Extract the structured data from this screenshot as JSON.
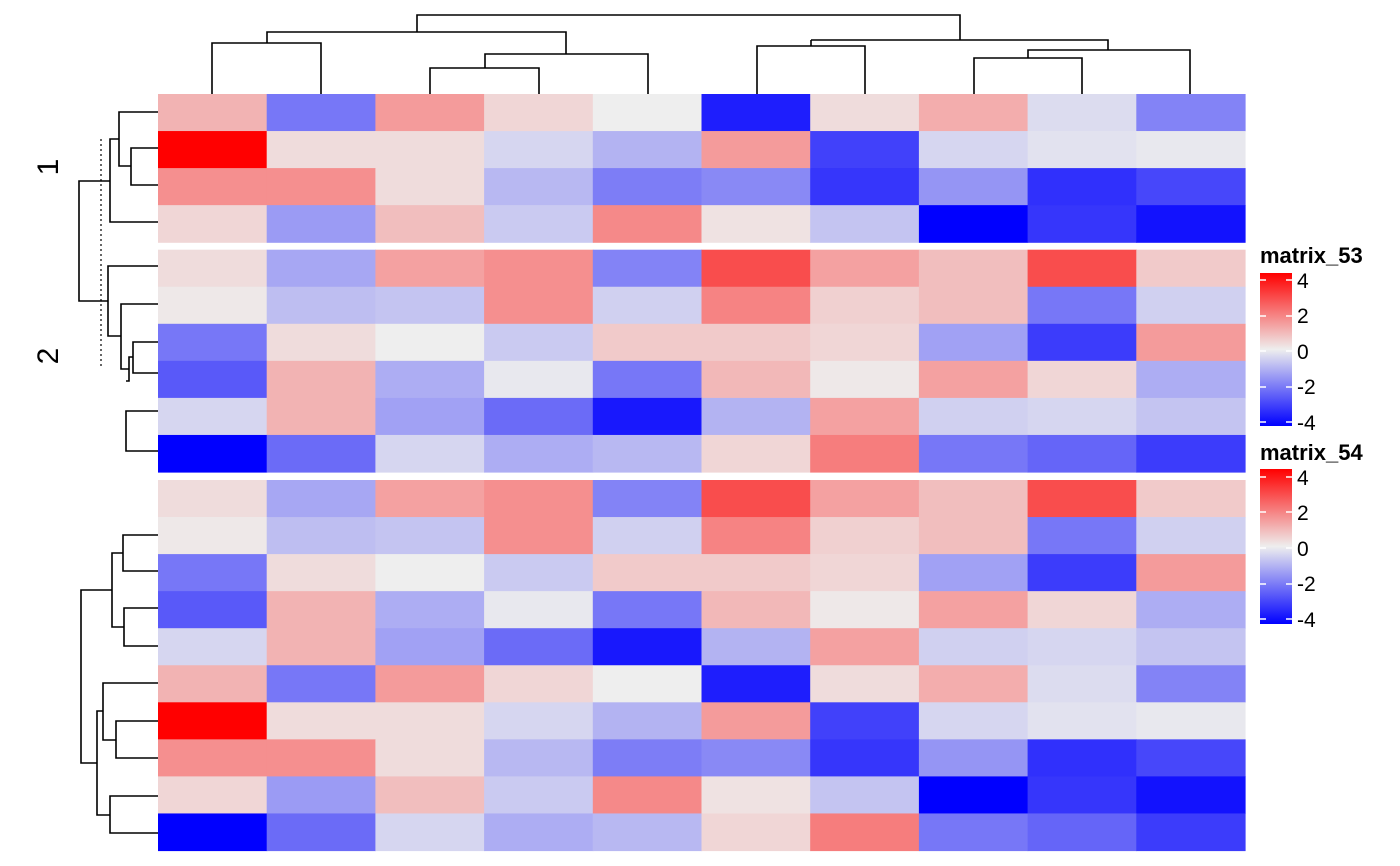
{
  "chart_data": [
    {
      "type": "heatmap",
      "name": "matrix_53",
      "split_labels": [
        "1",
        "2"
      ],
      "row_groups": [
        4,
        6
      ],
      "values": [
        [
          1.0,
          -2.0,
          1.4,
          0.4,
          0.0,
          -3.5,
          0.3,
          1.1,
          -0.3,
          -1.8
        ],
        [
          4.0,
          0.3,
          0.3,
          -0.4,
          -1.0,
          1.4,
          -2.9,
          -0.4,
          -0.2,
          -0.1
        ],
        [
          1.6,
          1.6,
          0.3,
          -0.9,
          -1.9,
          -1.7,
          -3.1,
          -1.5,
          -3.2,
          -2.8
        ],
        [
          0.4,
          -1.4,
          0.8,
          -0.6,
          1.7,
          0.2,
          -0.7,
          -4.0,
          -3.1,
          -3.7
        ],
        [
          0.3,
          -1.2,
          1.3,
          1.6,
          -1.8,
          2.7,
          1.3,
          0.8,
          2.7,
          0.6
        ],
        [
          0.1,
          -0.8,
          -0.7,
          1.6,
          -0.5,
          1.8,
          0.5,
          0.8,
          -2.0,
          -0.5
        ],
        [
          -2.0,
          0.3,
          0.0,
          -0.6,
          0.6,
          0.6,
          0.4,
          -1.3,
          -3.0,
          1.4
        ],
        [
          -2.5,
          1.0,
          -1.1,
          -0.1,
          -2.0,
          0.9,
          0.1,
          1.3,
          0.4,
          -1.1
        ],
        [
          -0.4,
          1.0,
          -1.3,
          -2.2,
          -3.6,
          -1.0,
          1.3,
          -0.5,
          -0.4,
          -0.7
        ],
        [
          -4.0,
          -2.2,
          -0.4,
          -1.1,
          -0.9,
          0.4,
          1.9,
          -2.0,
          -2.3,
          -3.0
        ]
      ]
    },
    {
      "type": "heatmap",
      "name": "matrix_54",
      "values": [
        [
          0.3,
          -1.2,
          1.3,
          1.6,
          -1.8,
          2.7,
          1.3,
          0.8,
          2.7,
          0.6
        ],
        [
          0.1,
          -0.8,
          -0.7,
          1.6,
          -0.5,
          1.8,
          0.5,
          0.8,
          -2.0,
          -0.5
        ],
        [
          -2.0,
          0.3,
          0.0,
          -0.6,
          0.6,
          0.6,
          0.4,
          -1.3,
          -3.0,
          1.4
        ],
        [
          -2.5,
          1.0,
          -1.1,
          -0.1,
          -2.0,
          0.9,
          0.1,
          1.3,
          0.4,
          -1.1
        ],
        [
          -0.4,
          1.0,
          -1.3,
          -2.2,
          -3.6,
          -1.0,
          1.3,
          -0.5,
          -0.4,
          -0.7
        ],
        [
          1.0,
          -2.0,
          1.4,
          0.4,
          0.0,
          -3.5,
          0.3,
          1.1,
          -0.3,
          -1.8
        ],
        [
          4.0,
          0.3,
          0.3,
          -0.4,
          -1.0,
          1.4,
          -2.9,
          -0.4,
          -0.2,
          -0.1
        ],
        [
          1.6,
          1.6,
          0.3,
          -0.9,
          -1.9,
          -1.7,
          -3.1,
          -1.5,
          -3.2,
          -2.8
        ],
        [
          0.4,
          -1.4,
          0.8,
          -0.6,
          1.7,
          0.2,
          -0.7,
          -4.0,
          -3.1,
          -3.7
        ],
        [
          -4.0,
          -2.2,
          -0.4,
          -1.1,
          -0.9,
          0.4,
          1.9,
          -2.0,
          -2.3,
          -3.0
        ]
      ]
    }
  ],
  "legends": [
    {
      "title": "matrix_53",
      "ticks": [
        "4",
        "2",
        "0",
        "-2",
        "-4"
      ]
    },
    {
      "title": "matrix_54",
      "ticks": [
        "4",
        "2",
        "0",
        "-2",
        "-4"
      ]
    }
  ],
  "colors": {
    "low": "#0000ff",
    "mid": "#eeeeee",
    "high": "#ff0000",
    "scale_min": -4,
    "scale_max": 4
  }
}
